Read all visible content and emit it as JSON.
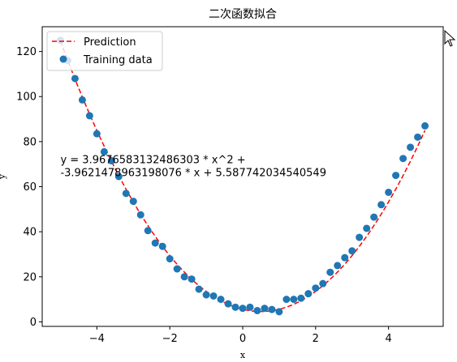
{
  "chart_data": {
    "type": "scatter",
    "title": "二次函数拟合",
    "xlabel": "x",
    "ylabel": "y",
    "xlim": [
      -5.5,
      5.5
    ],
    "ylim": [
      -2,
      131
    ],
    "xticks": [
      -4,
      -2,
      0,
      2,
      4
    ],
    "yticks": [
      0,
      20,
      40,
      60,
      80,
      100,
      120
    ],
    "grid": false,
    "legend_position": "top-left",
    "series": [
      {
        "name": "Prediction",
        "kind": "line",
        "style": "dashed",
        "color": "#ff0000",
        "coefficients": {
          "a": 3.9676583132486303,
          "b": -3.9621478963198076,
          "c": 5.587742034540549
        },
        "x_range": [
          -5,
          5
        ]
      },
      {
        "name": "Training data",
        "kind": "scatter",
        "color": "#1f77b4",
        "points": [
          [
            -5.0,
            125.0
          ],
          [
            -4.8,
            116.0
          ],
          [
            -4.6,
            108.0
          ],
          [
            -4.4,
            98.5
          ],
          [
            -4.2,
            91.5
          ],
          [
            -4.0,
            83.5
          ],
          [
            -3.8,
            75.5
          ],
          [
            -3.6,
            71.5
          ],
          [
            -3.4,
            64.5
          ],
          [
            -3.2,
            57.0
          ],
          [
            -3.0,
            53.5
          ],
          [
            -2.8,
            47.5
          ],
          [
            -2.6,
            40.5
          ],
          [
            -2.4,
            35.0
          ],
          [
            -2.2,
            33.5
          ],
          [
            -2.0,
            28.0
          ],
          [
            -1.8,
            23.5
          ],
          [
            -1.6,
            20.0
          ],
          [
            -1.4,
            19.0
          ],
          [
            -1.2,
            14.5
          ],
          [
            -1.0,
            12.0
          ],
          [
            -0.8,
            11.5
          ],
          [
            -0.6,
            10.0
          ],
          [
            -0.4,
            8.0
          ],
          [
            -0.2,
            6.5
          ],
          [
            0.0,
            6.0
          ],
          [
            0.2,
            6.5
          ],
          [
            0.4,
            5.0
          ],
          [
            0.6,
            6.0
          ],
          [
            0.8,
            5.5
          ],
          [
            1.0,
            4.5
          ],
          [
            1.2,
            10.0
          ],
          [
            1.4,
            10.0
          ],
          [
            1.6,
            10.5
          ],
          [
            1.8,
            12.5
          ],
          [
            2.0,
            15.0
          ],
          [
            2.2,
            17.0
          ],
          [
            2.4,
            22.0
          ],
          [
            2.6,
            25.0
          ],
          [
            2.8,
            28.5
          ],
          [
            3.0,
            31.5
          ],
          [
            3.2,
            37.5
          ],
          [
            3.4,
            41.5
          ],
          [
            3.6,
            46.5
          ],
          [
            3.8,
            52.0
          ],
          [
            4.0,
            57.5
          ],
          [
            4.2,
            65.0
          ],
          [
            4.4,
            72.5
          ],
          [
            4.6,
            77.5
          ],
          [
            4.8,
            82.0
          ],
          [
            5.0,
            87.0
          ]
        ]
      }
    ],
    "annotation": {
      "line1": "y = 3.9676583132486303 * x^2 +",
      "line2": "-3.9621478963198076 * x + 5.587742034540549",
      "x": -5.0,
      "y": 70
    }
  }
}
